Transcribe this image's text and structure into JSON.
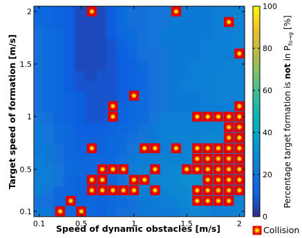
{
  "chart_data": {
    "type": "heatmap",
    "xlabel": "Speed of dynamic obstacles [m/s]",
    "ylabel": "Target speed of formation [m/s]",
    "x_ticks": [
      {
        "value": 0.1,
        "label": "0.1"
      },
      {
        "value": 0.5,
        "label": "0.5"
      },
      {
        "value": 1,
        "label": "1"
      },
      {
        "value": 1.5,
        "label": "1.5"
      },
      {
        "value": 2,
        "label": "2"
      }
    ],
    "y_ticks": [
      {
        "value": 0.1,
        "label": "0.1"
      },
      {
        "value": 0.5,
        "label": "0.5"
      },
      {
        "value": 1,
        "label": "1"
      },
      {
        "value": 1.5,
        "label": "1.5"
      },
      {
        "value": 2,
        "label": "2"
      }
    ],
    "xlim": [
      0.05,
      2.05
    ],
    "ylim": [
      0.05,
      2.05
    ],
    "grid": false,
    "colorbar": {
      "min": 0,
      "max": 100,
      "ticks": [
        {
          "value": 0,
          "label": "0"
        },
        {
          "value": 20,
          "label": "20"
        },
        {
          "value": 40,
          "label": "40"
        },
        {
          "value": 60,
          "label": "60"
        },
        {
          "value": 80,
          "label": "80"
        },
        {
          "value": 100,
          "label": "100"
        }
      ],
      "label_before": "Percentage target formation is ",
      "label_bold": "not",
      "label_after": " in P",
      "label_subscript": "fo→g",
      "label_end": " [%]"
    },
    "legend": {
      "label": "Collision",
      "placement": "bottom-right"
    },
    "colormap": "parula",
    "collision_points": [
      [
        0.3,
        0.1
      ],
      [
        0.5,
        0.1
      ],
      [
        0.4,
        0.2
      ],
      [
        1.6,
        0.2
      ],
      [
        1.7,
        0.2
      ],
      [
        1.8,
        0.2
      ],
      [
        1.9,
        0.2
      ],
      [
        0.6,
        0.3
      ],
      [
        0.7,
        0.3
      ],
      [
        0.8,
        0.3
      ],
      [
        0.9,
        0.3
      ],
      [
        1.0,
        0.3
      ],
      [
        1.2,
        0.3
      ],
      [
        1.6,
        0.3
      ],
      [
        1.7,
        0.3
      ],
      [
        1.8,
        0.3
      ],
      [
        1.9,
        0.3
      ],
      [
        2.0,
        0.3
      ],
      [
        0.6,
        0.4
      ],
      [
        0.7,
        0.4
      ],
      [
        1.0,
        0.4
      ],
      [
        1.1,
        0.4
      ],
      [
        1.7,
        0.4
      ],
      [
        1.8,
        0.4
      ],
      [
        1.9,
        0.4
      ],
      [
        2.0,
        0.4
      ],
      [
        0.7,
        0.5
      ],
      [
        0.8,
        0.5
      ],
      [
        0.9,
        0.5
      ],
      [
        1.2,
        0.5
      ],
      [
        1.5,
        0.5
      ],
      [
        1.6,
        0.5
      ],
      [
        1.7,
        0.5
      ],
      [
        1.8,
        0.5
      ],
      [
        1.9,
        0.5
      ],
      [
        2.0,
        0.5
      ],
      [
        1.6,
        0.6
      ],
      [
        1.7,
        0.6
      ],
      [
        1.8,
        0.6
      ],
      [
        1.9,
        0.6
      ],
      [
        2.0,
        0.6
      ],
      [
        0.6,
        0.7
      ],
      [
        1.1,
        0.7
      ],
      [
        1.2,
        0.7
      ],
      [
        1.4,
        0.7
      ],
      [
        1.6,
        0.7
      ],
      [
        1.7,
        0.7
      ],
      [
        1.8,
        0.7
      ],
      [
        1.9,
        0.7
      ],
      [
        2.0,
        0.7
      ],
      [
        1.9,
        0.8
      ],
      [
        2.0,
        0.8
      ],
      [
        1.9,
        0.9
      ],
      [
        2.0,
        0.9
      ],
      [
        0.8,
        1.0
      ],
      [
        1.6,
        1.0
      ],
      [
        1.7,
        1.0
      ],
      [
        1.8,
        1.0
      ],
      [
        1.9,
        1.0
      ],
      [
        2.0,
        1.0
      ],
      [
        0.8,
        1.1
      ],
      [
        2.0,
        1.1
      ],
      [
        1.0,
        1.2
      ],
      [
        2.0,
        1.6
      ],
      [
        1.9,
        1.9
      ],
      [
        0.6,
        2.0
      ],
      [
        1.4,
        2.0
      ],
      [
        1.3,
        2.1
      ],
      [
        1.5,
        2.1
      ]
    ],
    "heat_values": [
      [
        22,
        22,
        14,
        14,
        12,
        14,
        12,
        16,
        18,
        18,
        22,
        22,
        22,
        22,
        26,
        28,
        26,
        24,
        24,
        26,
        26
      ],
      [
        18,
        18,
        14,
        14,
        12,
        14,
        12,
        14,
        16,
        18,
        22,
        22,
        24,
        26,
        28,
        30,
        26,
        24,
        24,
        26,
        26
      ],
      [
        24,
        20,
        14,
        14,
        12,
        12,
        12,
        14,
        18,
        22,
        24,
        24,
        26,
        28,
        28,
        32,
        30,
        26,
        24,
        22,
        20
      ],
      [
        24,
        24,
        20,
        14,
        12,
        12,
        12,
        14,
        18,
        24,
        26,
        26,
        28,
        28,
        30,
        32,
        30,
        30,
        26,
        26,
        24
      ],
      [
        24,
        24,
        20,
        16,
        14,
        14,
        14,
        14,
        20,
        24,
        26,
        26,
        26,
        28,
        28,
        30,
        32,
        30,
        28,
        26,
        26
      ],
      [
        24,
        22,
        18,
        14,
        14,
        14,
        14,
        14,
        18,
        22,
        24,
        24,
        26,
        26,
        26,
        28,
        30,
        30,
        28,
        26,
        24
      ],
      [
        22,
        22,
        18,
        14,
        12,
        12,
        12,
        14,
        16,
        20,
        22,
        22,
        24,
        26,
        26,
        28,
        30,
        28,
        28,
        26,
        24
      ],
      [
        22,
        20,
        16,
        14,
        12,
        12,
        12,
        14,
        16,
        18,
        20,
        22,
        24,
        26,
        26,
        26,
        28,
        28,
        26,
        24,
        24
      ],
      [
        22,
        20,
        16,
        14,
        10,
        10,
        10,
        12,
        14,
        16,
        18,
        22,
        24,
        24,
        24,
        24,
        26,
        26,
        26,
        26,
        26
      ],
      [
        20,
        18,
        14,
        12,
        10,
        8,
        8,
        10,
        12,
        14,
        16,
        20,
        24,
        24,
        24,
        24,
        26,
        26,
        26,
        28,
        26
      ],
      [
        18,
        16,
        14,
        12,
        10,
        8,
        8,
        10,
        12,
        14,
        16,
        18,
        20,
        22,
        22,
        22,
        24,
        24,
        24,
        24,
        24
      ],
      [
        18,
        16,
        14,
        12,
        10,
        8,
        8,
        8,
        10,
        12,
        16,
        18,
        20,
        22,
        22,
        22,
        24,
        26,
        26,
        26,
        26
      ],
      [
        18,
        16,
        14,
        10,
        8,
        8,
        8,
        8,
        10,
        12,
        14,
        18,
        20,
        22,
        24,
        24,
        24,
        26,
        26,
        26,
        26
      ],
      [
        18,
        16,
        14,
        10,
        8,
        6,
        8,
        8,
        10,
        12,
        14,
        18,
        20,
        22,
        22,
        24,
        24,
        26,
        26,
        26,
        26
      ],
      [
        18,
        16,
        14,
        10,
        6,
        6,
        6,
        8,
        10,
        12,
        16,
        18,
        20,
        22,
        22,
        24,
        24,
        24,
        26,
        26,
        26
      ],
      [
        18,
        16,
        14,
        10,
        6,
        6,
        6,
        8,
        10,
        14,
        18,
        18,
        20,
        22,
        22,
        22,
        24,
        24,
        24,
        26,
        26
      ],
      [
        18,
        16,
        14,
        10,
        6,
        6,
        6,
        8,
        12,
        16,
        18,
        20,
        22,
        22,
        22,
        22,
        24,
        24,
        24,
        26,
        26
      ],
      [
        18,
        16,
        14,
        10,
        6,
        6,
        6,
        10,
        14,
        16,
        18,
        20,
        22,
        22,
        22,
        22,
        22,
        24,
        24,
        26,
        26
      ],
      [
        16,
        14,
        12,
        10,
        6,
        6,
        6,
        10,
        16,
        18,
        18,
        20,
        20,
        22,
        22,
        22,
        22,
        24,
        24,
        26,
        26
      ],
      [
        14,
        14,
        12,
        10,
        6,
        6,
        6,
        10,
        16,
        18,
        18,
        20,
        20,
        22,
        22,
        22,
        22,
        24,
        24,
        26,
        24
      ],
      [
        14,
        14,
        12,
        10,
        6,
        8,
        8,
        12,
        16,
        16,
        18,
        20,
        20,
        22,
        22,
        24,
        22,
        22,
        24,
        24,
        24
      ]
    ]
  }
}
